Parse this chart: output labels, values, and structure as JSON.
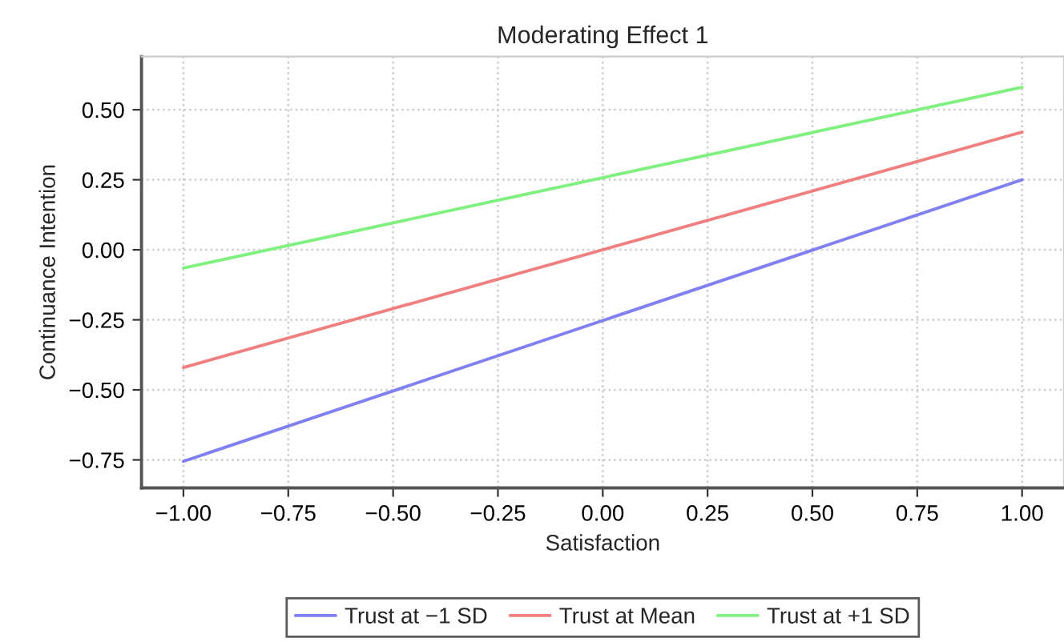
{
  "chart_data": {
    "type": "line",
    "title": "Moderating Effect 1",
    "xlabel": "Satisfaction",
    "ylabel": "Continuance Intention",
    "x": [
      -1.0,
      1.0
    ],
    "series": [
      {
        "name": "Trust at −1 SD",
        "color": "#8080f0",
        "values": [
          -0.755,
          0.25
        ]
      },
      {
        "name": "Trust at Mean",
        "color": "#f08080",
        "values": [
          -0.42,
          0.42
        ]
      },
      {
        "name": "Trust at +1 SD",
        "color": "#80f080",
        "values": [
          -0.065,
          0.58
        ]
      }
    ],
    "xlim": [
      -1.1,
      1.1
    ],
    "ylim": [
      -0.85,
      0.69
    ],
    "xticks": [
      {
        "value": -1,
        "label": "−1.00"
      },
      {
        "value": -0.75,
        "label": "−0.75"
      },
      {
        "value": -0.5,
        "label": "−0.50"
      },
      {
        "value": -0.25,
        "label": "−0.25"
      },
      {
        "value": 0,
        "label": "0.00"
      },
      {
        "value": 0.25,
        "label": "0.25"
      },
      {
        "value": 0.5,
        "label": "0.50"
      },
      {
        "value": 0.75,
        "label": "0.75"
      },
      {
        "value": 1,
        "label": "1.00"
      }
    ],
    "yticks": [
      {
        "value": -0.75,
        "label": "−0.75"
      },
      {
        "value": -0.5,
        "label": "−0.50"
      },
      {
        "value": -0.25,
        "label": "−0.25"
      },
      {
        "value": 0,
        "label": "0.00"
      },
      {
        "value": 0.25,
        "label": "0.25"
      },
      {
        "value": 0.5,
        "label": "0.50"
      }
    ],
    "grid": true,
    "legend": "bottom",
    "marker": "none",
    "line_style": "solid"
  }
}
